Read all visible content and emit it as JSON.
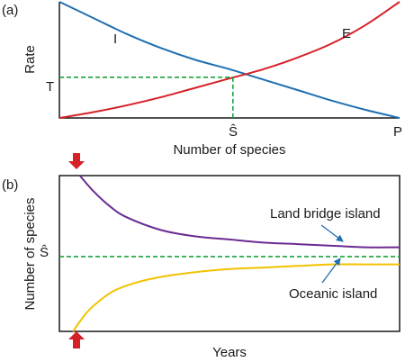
{
  "colors": {
    "immigration": "#1f6fb2",
    "extinction": "#d62027",
    "equilibrium": "#1aa33a",
    "land_bridge": "#6a2b90",
    "oceanic": "#f2c200",
    "arrow": "#d62027",
    "arrow_callout": "#1f6fb2",
    "frame": "#1a1a1a"
  },
  "panels": {
    "a": {
      "label": "(a)"
    },
    "b": {
      "label": "(b)"
    }
  },
  "chart_data": [
    {
      "type": "line",
      "panel": "a",
      "title": "",
      "xlabel": "Number of species",
      "ylabel": "Rate",
      "xlim": [
        0,
        1
      ],
      "ylim": [
        0,
        1
      ],
      "x_ticks": [
        "Ŝ",
        "P"
      ],
      "y_ticks": [
        "T"
      ],
      "series": [
        {
          "name": "I",
          "color": "immigration",
          "x": [
            0,
            0.1,
            0.2,
            0.3,
            0.4,
            0.5,
            0.6,
            0.7,
            0.8,
            0.9,
            1.0
          ],
          "y": [
            1.0,
            0.86,
            0.72,
            0.6,
            0.5,
            0.42,
            0.33,
            0.24,
            0.15,
            0.07,
            0.0
          ]
        },
        {
          "name": "E",
          "color": "extinction",
          "x": [
            0,
            0.1,
            0.2,
            0.3,
            0.4,
            0.5,
            0.6,
            0.7,
            0.8,
            0.9,
            1.0
          ],
          "y": [
            0.0,
            0.05,
            0.11,
            0.18,
            0.26,
            0.34,
            0.42,
            0.52,
            0.64,
            0.8,
            1.0
          ]
        }
      ],
      "equilibrium": {
        "x": 0.51,
        "y": 0.35,
        "x_label": "Ŝ",
        "y_label": "T"
      },
      "grid": false,
      "legend": "none"
    },
    {
      "type": "line",
      "panel": "b",
      "title": "",
      "xlabel": "Years",
      "ylabel": "Number of species",
      "xlim": [
        0,
        1
      ],
      "ylim": [
        0,
        1
      ],
      "y_ticks": [
        "Ŝ"
      ],
      "reference_line": {
        "y": 0.48,
        "label": "Ŝ"
      },
      "series": [
        {
          "name": "Land bridge island",
          "color": "land_bridge",
          "x": [
            0.06,
            0.1,
            0.15,
            0.2,
            0.3,
            0.4,
            0.5,
            0.6,
            0.7,
            0.8,
            0.9,
            1.0
          ],
          "y": [
            1.0,
            0.9,
            0.8,
            0.73,
            0.65,
            0.61,
            0.59,
            0.57,
            0.56,
            0.55,
            0.54,
            0.54
          ]
        },
        {
          "name": "Oceanic island",
          "color": "oceanic",
          "x": [
            0.04,
            0.08,
            0.12,
            0.16,
            0.22,
            0.3,
            0.4,
            0.5,
            0.6,
            0.7,
            0.8,
            0.9,
            1.0
          ],
          "y": [
            0.0,
            0.12,
            0.2,
            0.26,
            0.31,
            0.35,
            0.38,
            0.4,
            0.41,
            0.42,
            0.43,
            0.43,
            0.43
          ]
        }
      ],
      "annotations": [
        {
          "text": "Land bridge island",
          "series": "Land bridge island"
        },
        {
          "text": "Oceanic island",
          "series": "Oceanic island"
        }
      ],
      "markers": [
        "start-arrow-down",
        "start-arrow-up"
      ],
      "grid": false,
      "legend": "none"
    }
  ]
}
